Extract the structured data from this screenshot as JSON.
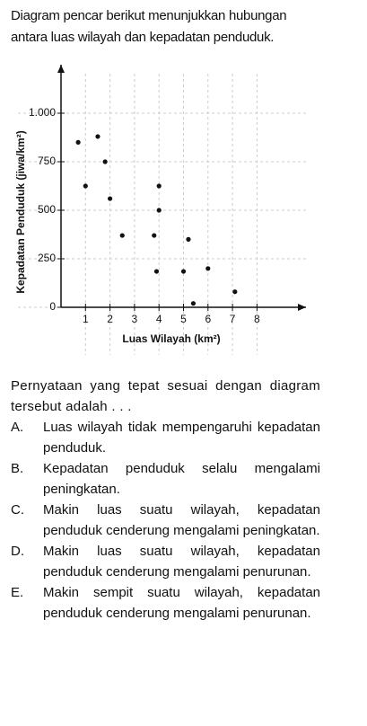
{
  "intro": "Diagram pencar berikut menunjukkan hubungan antara luas wilayah dan kepadatan penduduk.",
  "chart_data": {
    "type": "scatter",
    "xlabel": "Luas Wilayah (km²)",
    "ylabel": "Kepadatan Penduduk (jiwa/km²)",
    "x": [
      0.7,
      1.5,
      1.8,
      1.0,
      2.0,
      2.5,
      4.0,
      4.0,
      3.8,
      3.9,
      5.2,
      5.0,
      6.0,
      5.4,
      7.1
    ],
    "values": [
      850,
      880,
      750,
      625,
      560,
      370,
      625,
      500,
      370,
      185,
      350,
      185,
      200,
      20,
      80
    ],
    "color": "#111111",
    "xlim": [
      0,
      10
    ],
    "ylim": [
      0,
      1250
    ],
    "xticks": [
      1,
      2,
      3,
      4,
      5,
      6,
      7,
      8
    ],
    "yticks": [
      0,
      250,
      500,
      750,
      {
        "value": 1000,
        "label": "1.000"
      }
    ],
    "grid": true
  },
  "question": "Pernyataan yang tepat sesuai dengan diagram tersebut adalah . . .",
  "options": [
    {
      "letter": "A.",
      "text": "Luas wilayah tidak mempengaruhi kepadatan penduduk."
    },
    {
      "letter": "B.",
      "text": "Kepadatan penduduk selalu mengalami peningkatan."
    },
    {
      "letter": "C.",
      "text": "Makin luas suatu wilayah, kepadatan penduduk cenderung mengalami peningkatan."
    },
    {
      "letter": "D.",
      "text": "Makin luas suatu wilayah, kepadatan penduduk cenderung mengalami penurunan."
    },
    {
      "letter": "E.",
      "text": "Makin sempit suatu wilayah, kepadatan penduduk cenderung mengalami penurunan."
    }
  ]
}
